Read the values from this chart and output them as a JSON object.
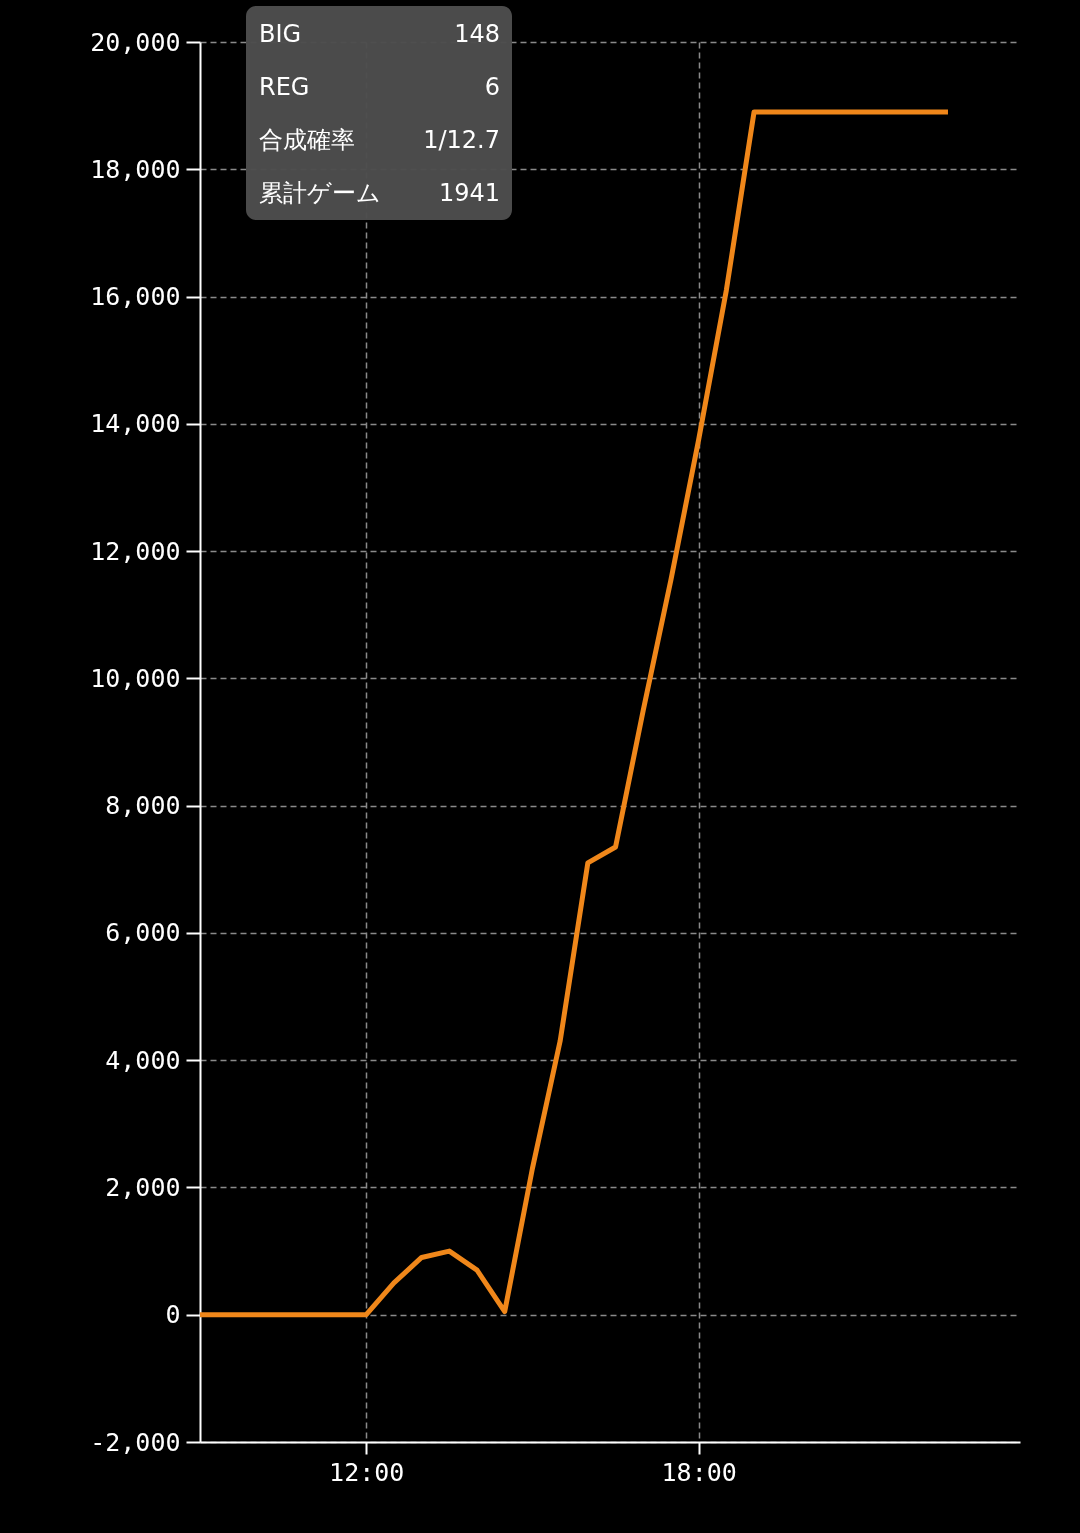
{
  "chart_data": {
    "type": "line",
    "x": [
      9,
      9.5,
      10,
      10.5,
      11,
      11.5,
      12,
      12.5,
      13,
      13.5,
      14,
      14.5,
      15,
      15.5,
      16,
      16.5,
      17,
      17.5,
      18,
      18.5,
      19,
      19.5,
      20,
      20.5,
      21,
      21.5,
      22,
      22.5
    ],
    "series": [
      {
        "color": "#f0871a",
        "values": [
          0,
          0,
          0,
          0,
          0,
          0,
          0,
          500,
          900,
          1000,
          700,
          50,
          2300,
          4300,
          7100,
          7350,
          9500,
          11550,
          13750,
          16100,
          18900,
          18900,
          18900,
          18900,
          18900,
          18900,
          18900,
          18900
        ]
      }
    ],
    "xlim": [
      9,
      23.8
    ],
    "xticks": [
      {
        "value": 12,
        "label": "12:00"
      },
      {
        "value": 18,
        "label": "18:00"
      }
    ],
    "ylim": [
      -2000,
      20000
    ],
    "yticks": [
      {
        "value": -2000,
        "label": "-2,000"
      },
      0,
      {
        "value": 2000,
        "label": "2,000"
      },
      {
        "value": 4000,
        "label": "4,000"
      },
      {
        "value": 6000,
        "label": "6,000"
      },
      {
        "value": 8000,
        "label": "8,000"
      },
      {
        "value": 10000,
        "label": "10,000"
      },
      {
        "value": 12000,
        "label": "12,000"
      },
      {
        "value": 14000,
        "label": "14,000"
      },
      {
        "value": 16000,
        "label": "16,000"
      },
      {
        "value": 18000,
        "label": "18,000"
      },
      {
        "value": 20000,
        "label": "20,000"
      }
    ],
    "grid": true,
    "marker": "none",
    "line_style": "solid",
    "annotations": [
      "BIG",
      "148",
      "REG",
      "6",
      "合成確率",
      "1/12.7",
      "累計ゲーム",
      "1941"
    ]
  }
}
